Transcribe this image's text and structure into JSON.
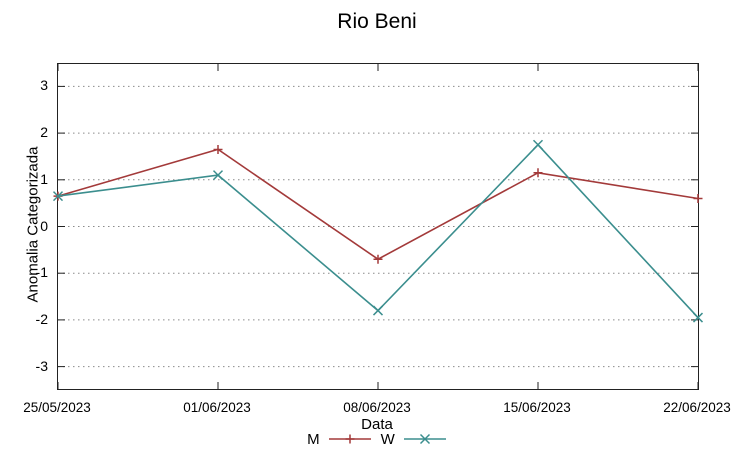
{
  "title": "Rio Beni",
  "axes": {
    "y_label": "Anomalia Categorizada",
    "x_label": "Data",
    "y_ticks": [
      "3",
      "2",
      "1",
      "0",
      "-1",
      "-2",
      "-3"
    ],
    "x_ticks": [
      "25/05/2023",
      "01/06/2023",
      "08/06/2023",
      "15/06/2023",
      "22/06/2023"
    ]
  },
  "legend": {
    "entries": [
      {
        "label": "M",
        "color": "#a33a3a",
        "marker": "plus"
      },
      {
        "label": "W",
        "color": "#3b8e8e",
        "marker": "cross"
      }
    ]
  },
  "chart_data": {
    "type": "line",
    "title": "Rio Beni",
    "xlabel": "Data",
    "ylabel": "Anomalia Categorizada",
    "categories": [
      "25/05/2023",
      "01/06/2023",
      "08/06/2023",
      "15/06/2023",
      "22/06/2023"
    ],
    "series": [
      {
        "name": "M",
        "color": "#a33a3a",
        "marker": "plus",
        "values": [
          0.65,
          1.65,
          -0.7,
          1.15,
          0.6
        ]
      },
      {
        "name": "W",
        "color": "#3b8e8e",
        "marker": "cross",
        "values": [
          0.65,
          1.1,
          -1.8,
          1.75,
          -1.95
        ]
      }
    ],
    "ylim": [
      -3.5,
      3.5
    ],
    "y_tick_values": [
      3,
      2,
      1,
      0,
      -1,
      -2,
      -3
    ],
    "grid": "horizontal-dotted",
    "legend_position": "bottom-center",
    "grid_color": "#8a8a8a",
    "border_color": "#222222"
  }
}
